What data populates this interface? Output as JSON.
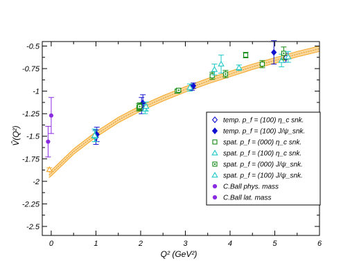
{
  "chart_data": {
    "type": "scatter",
    "title": "",
    "xlabel": "Q² (GeV²)",
    "ylabel": "V̂(Q²)",
    "xlim": [
      -0.2,
      6
    ],
    "ylim": [
      -2.6,
      -0.45
    ],
    "x_ticks": [
      0,
      1,
      2,
      3,
      4,
      5,
      6
    ],
    "y_ticks": [
      -2.5,
      -2.25,
      -2,
      -1.75,
      -1.5,
      -1.25,
      -1,
      -0.75,
      -0.5
    ],
    "x_tick_labels": [
      "0",
      "1",
      "2",
      "3",
      "4",
      "5",
      "6"
    ],
    "y_tick_labels": [
      "-2.5",
      "-2.25",
      "-2",
      "-1.75",
      "-1.5",
      "-1.25",
      "-1",
      "-0.75",
      "-0.5"
    ],
    "grid": false,
    "legend_position": "right",
    "fit_band": {
      "x": [
        -0.05,
        0,
        0.5,
        1,
        1.5,
        2,
        2.5,
        3,
        3.5,
        4,
        4.5,
        5,
        5.5,
        6
      ],
      "y": [
        -1.93,
        -1.91,
        -1.67,
        -1.48,
        -1.32,
        -1.19,
        -1.08,
        -0.98,
        -0.89,
        -0.81,
        -0.73,
        -0.66,
        -0.59,
        -0.53
      ],
      "half_width": 0.03,
      "color": "#f5a623"
    },
    "series": [
      {
        "name": "temp. p_f = (100) η_c snk.",
        "marker": "diamond-open",
        "color": "#1010d0",
        "points": [
          {
            "x": 1.0,
            "y": -1.51,
            "err": 0.08
          },
          {
            "x": 2.02,
            "y": -1.16,
            "err": 0.09
          },
          {
            "x": 3.15,
            "y": -0.96,
            "err": 0.03
          },
          {
            "x": 5.25,
            "y": -0.63,
            "err": 0.05
          }
        ]
      },
      {
        "name": "temp. p_f = (100) J/ψ_snk.",
        "marker": "diamond-filled",
        "color": "#1010d0",
        "points": [
          {
            "x": 1.02,
            "y": -1.48,
            "err": 0.08
          },
          {
            "x": 2.05,
            "y": -1.13,
            "err": 0.09
          },
          {
            "x": 3.18,
            "y": -0.94,
            "err": 0.03
          },
          {
            "x": 4.98,
            "y": -0.57,
            "err": 0.13
          }
        ]
      },
      {
        "name": "spat. p_f = (000) η_c snk.",
        "marker": "square-open",
        "color": "#108a10",
        "points": [
          {
            "x": 1.96,
            "y": -1.18,
            "err": 0.04
          },
          {
            "x": 2.82,
            "y": -1.0,
            "err": 0.02
          },
          {
            "x": 3.6,
            "y": -0.83,
            "err": 0.04
          },
          {
            "x": 4.35,
            "y": -0.6,
            "err": 0.03
          },
          {
            "x": 4.72,
            "y": -0.7,
            "err": 0.04
          }
        ]
      },
      {
        "name": "spat. p_f = (100) η_c snk.",
        "marker": "triangle-open",
        "color": "#20c8c8",
        "points": [
          {
            "x": 0.98,
            "y": -1.5,
            "err": 0.06
          },
          {
            "x": 2.1,
            "y": -1.2,
            "err": 0.05
          },
          {
            "x": 3.1,
            "y": -0.96,
            "err": 0.04
          },
          {
            "x": 3.65,
            "y": -0.76,
            "err": 0.06
          },
          {
            "x": 4.2,
            "y": -0.74,
            "err": 0.03
          },
          {
            "x": 5.15,
            "y": -0.66,
            "err": 0.07
          }
        ]
      },
      {
        "name": "spat. p_f = (000) J/ψ_snk.",
        "marker": "square-dot",
        "color": "#108a10",
        "points": [
          {
            "x": 1.98,
            "y": -1.17,
            "err": 0.04
          },
          {
            "x": 2.85,
            "y": -0.99,
            "err": 0.02
          },
          {
            "x": 3.9,
            "y": -0.81,
            "err": 0.04
          },
          {
            "x": 5.2,
            "y": -0.58,
            "err": 0.07
          }
        ]
      },
      {
        "name": "spat. p_f = (100) J/ψ_snk.",
        "marker": "triangle-open",
        "color": "#20c8c8",
        "points": [
          {
            "x": 0.97,
            "y": -1.49,
            "err": 0.07
          },
          {
            "x": 2.12,
            "y": -1.17,
            "err": 0.05
          },
          {
            "x": 3.8,
            "y": -0.7,
            "err": 0.1
          },
          {
            "x": 5.3,
            "y": -0.62,
            "err": 0.06
          }
        ]
      },
      {
        "name": "C.Ball phys. mass",
        "marker": "circle-filled",
        "color": "#8a2be2",
        "points": [
          {
            "x": 0.0,
            "y": -1.27,
            "err": 0.2
          }
        ]
      },
      {
        "name": "C.Ball lat. mass",
        "marker": "circle-filled",
        "color": "#8a2be2",
        "points": [
          {
            "x": -0.07,
            "y": -1.56,
            "err": 0.17
          }
        ]
      }
    ],
    "extra_points": [
      {
        "x": -0.04,
        "y": -1.87,
        "err": 0.02,
        "marker": "triangle-open",
        "color": "#f5a623"
      }
    ]
  }
}
